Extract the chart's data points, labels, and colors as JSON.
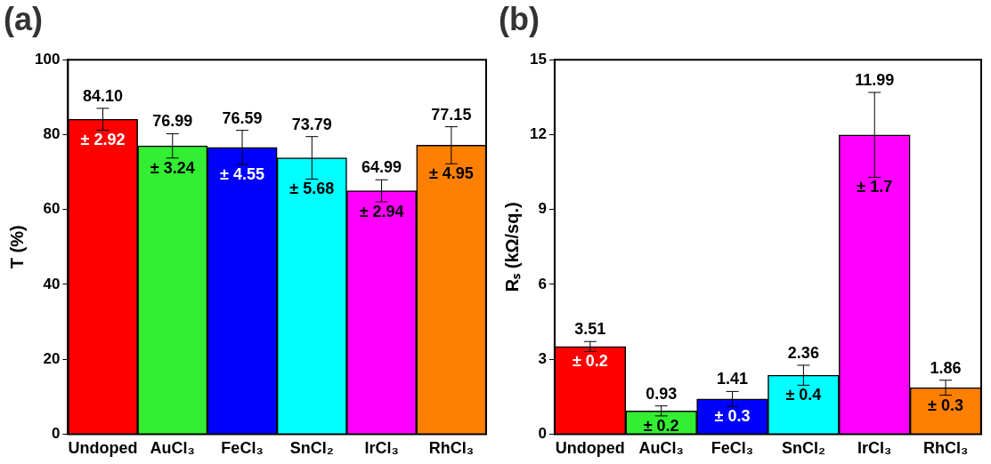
{
  "chart_data": [
    {
      "type": "bar",
      "title": "(a)",
      "ylabel": "T (%)",
      "categories": [
        "Undoped",
        "AuCl₃",
        "FeCl₃",
        "SnCl₂",
        "IrCl₃",
        "RhCl₃"
      ],
      "values": [
        84.1,
        76.99,
        76.59,
        73.79,
        64.99,
        77.15
      ],
      "value_labels": [
        "84.10",
        "76.99",
        "76.59",
        "73.79",
        "64.99",
        "77.15"
      ],
      "errors": [
        2.92,
        3.24,
        4.55,
        5.68,
        2.94,
        4.95
      ],
      "colors": [
        "#ff0000",
        "#33ee33",
        "#0000ff",
        "#00ffff",
        "#ff00ff",
        "#ff8000"
      ],
      "annotations": [
        "± 2.92",
        "± 3.24",
        "± 4.55",
        "± 5.68",
        "± 2.94",
        "± 4.95"
      ],
      "ylim": [
        0,
        100
      ],
      "yticks": [
        0,
        20,
        40,
        60,
        80,
        100
      ],
      "grid": false,
      "legend": false
    },
    {
      "type": "bar",
      "title": "(b)",
      "ylabel": "Rₛ (kΩ/sq.)",
      "categories": [
        "Undoped",
        "AuCl₃",
        "FeCl₃",
        "SnCl₂",
        "IrCl₃",
        "RhCl₃"
      ],
      "values": [
        3.51,
        0.93,
        1.41,
        2.36,
        11.99,
        1.86
      ],
      "data_labels": true,
      "errors": [
        0.2,
        0.2,
        0.3,
        0.4,
        1.7,
        0.3
      ],
      "colors": [
        "#ff0000",
        "#33ee33",
        "#0000ff",
        "#00ffff",
        "#ff00ff",
        "#ff8000"
      ],
      "annotations": [
        "± 0.2",
        "± 0.2",
        "± 0.3",
        "± 0.4",
        "± 1.7",
        "± 0.3"
      ],
      "ylim": [
        0,
        15
      ],
      "yticks": [
        0,
        3,
        6,
        9,
        12,
        15
      ],
      "grid": false,
      "legend": false
    }
  ]
}
